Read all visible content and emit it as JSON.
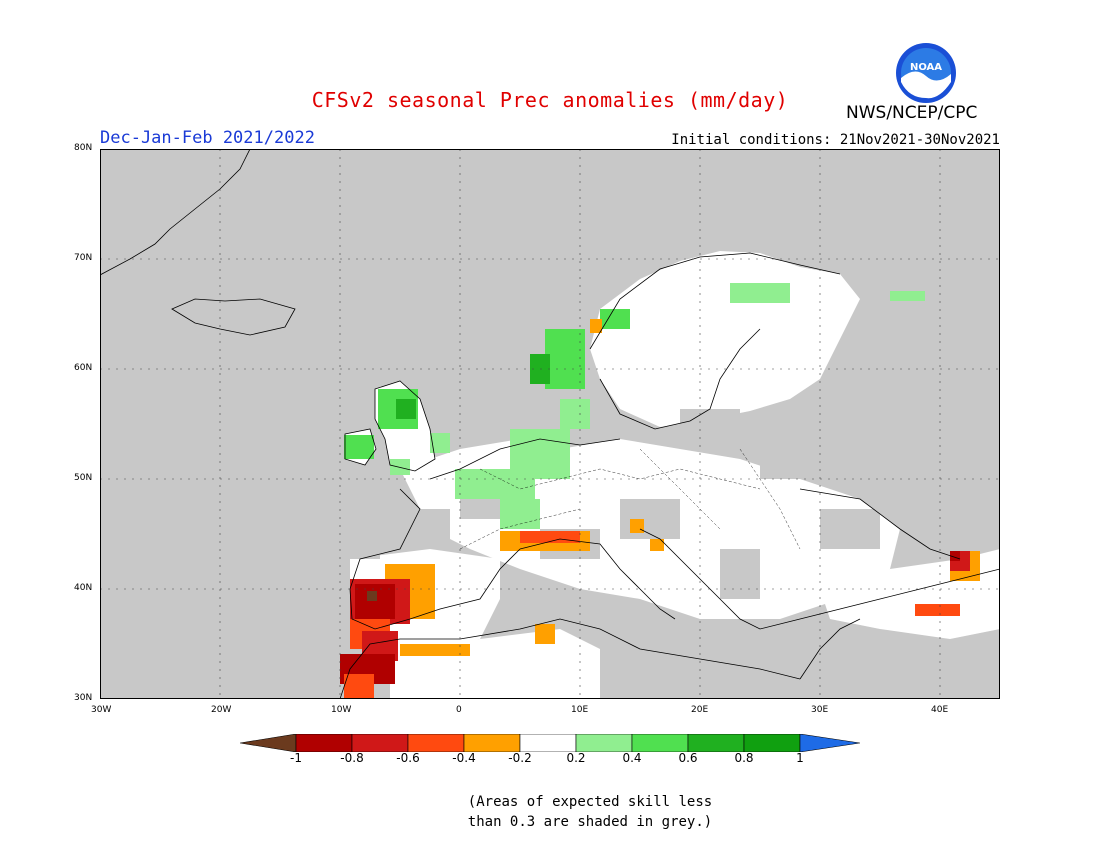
{
  "title": "CFSv2 seasonal Prec anomalies (mm/day)",
  "agency": "NWS/NCEP/CPC",
  "logo_text": "NOAA",
  "season": "Dec-Jan-Feb 2021/2022",
  "initial_conditions": "Initial conditions: 21Nov2021-30Nov2021",
  "axes": {
    "lon_ticks": [
      "30W",
      "20W",
      "10W",
      "0",
      "10E",
      "20E",
      "30E",
      "40E"
    ],
    "lat_ticks": [
      "80N",
      "70N",
      "60N",
      "50N",
      "40N",
      "30N"
    ],
    "lon_range": [
      -30,
      45
    ],
    "lat_range": [
      30,
      80
    ]
  },
  "colorbar": {
    "labels": [
      "-1",
      "-0.8",
      "-0.6",
      "-0.4",
      "-0.2",
      "0.2",
      "0.4",
      "0.6",
      "0.8",
      "1"
    ],
    "colors": [
      "#6b3a1e",
      "#b00000",
      "#d01818",
      "#ff4a10",
      "#ffa000",
      "#ffffff",
      "#90ee90",
      "#50e050",
      "#20b020",
      "#10a010",
      "#1e6be6"
    ]
  },
  "legend": {
    "colors": {
      "land": "#ffffff",
      "low_skill": "#c8c8c8"
    }
  },
  "note_lines": [
    "(Areas of expected skill less",
    "than 0.3 are shaded in grey.)"
  ]
}
